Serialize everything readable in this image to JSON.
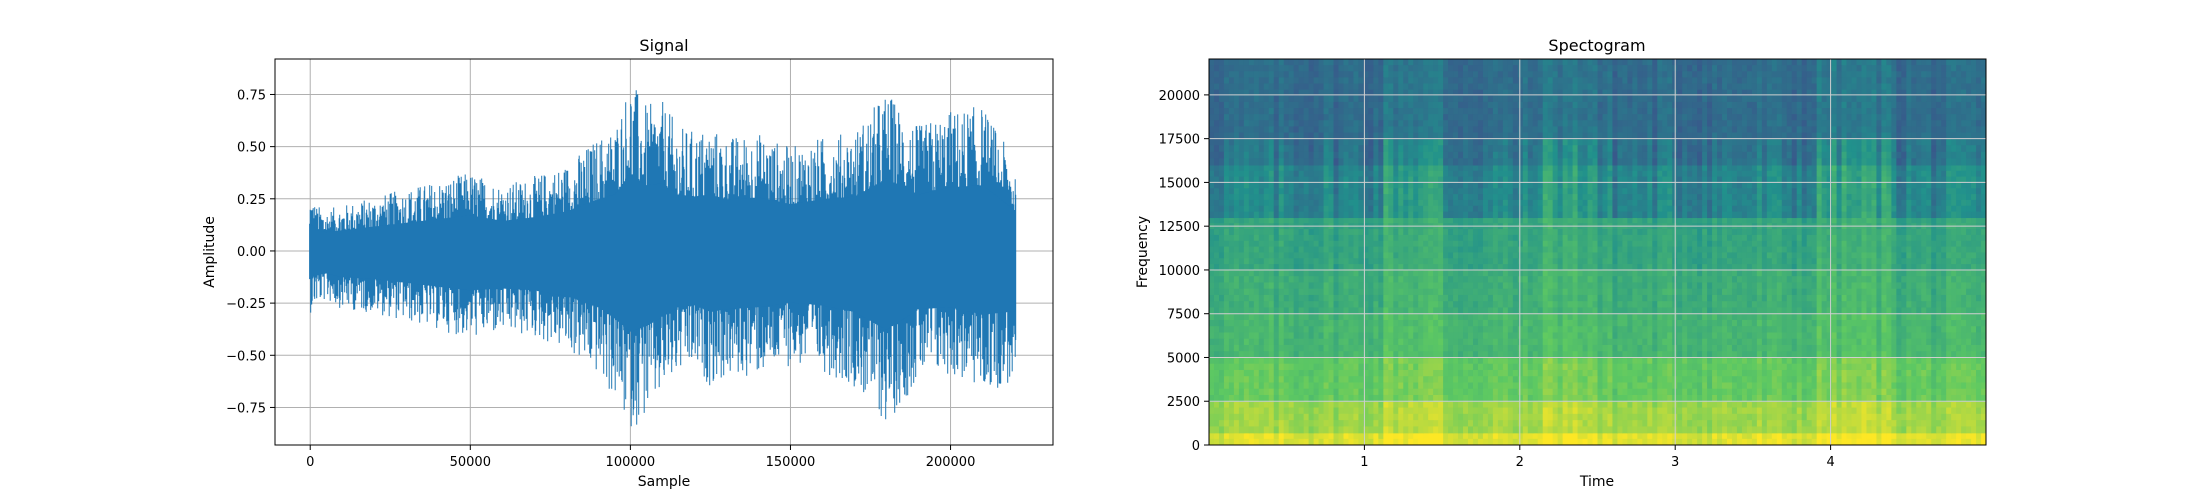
{
  "chart_data": [
    {
      "type": "line",
      "title": "Signal",
      "xlabel": "Sample",
      "ylabel": "Amplitude",
      "xlim": [
        -11000,
        232000
      ],
      "ylim": [
        -0.93,
        0.92
      ],
      "xticks": [
        0,
        50000,
        100000,
        150000,
        200000
      ],
      "xtick_labels": [
        "0",
        "50000",
        "100000",
        "150000",
        "200000"
      ],
      "yticks": [
        -0.75,
        -0.5,
        -0.25,
        0.0,
        0.25,
        0.5,
        0.75
      ],
      "ytick_labels": [
        "−0.75",
        "−0.50",
        "−0.25",
        "0.00",
        "0.25",
        "0.50",
        "0.75"
      ],
      "grid": true,
      "color": "#1f77b4",
      "series": [
        {
          "x": [
            0,
            2000,
            5000,
            10000,
            20000,
            30000,
            40000,
            50000,
            60000,
            70000,
            80000,
            90000,
            95000,
            100000,
            105000,
            110000,
            115000,
            120000,
            125000,
            130000,
            140000,
            150000,
            160000,
            170000,
            180000,
            190000,
            200000,
            210000,
            220500
          ],
          "max": [
            0.29,
            0.22,
            0.2,
            0.22,
            0.26,
            0.3,
            0.34,
            0.38,
            0.32,
            0.36,
            0.42,
            0.55,
            0.6,
            0.83,
            0.7,
            0.72,
            0.6,
            0.58,
            0.6,
            0.55,
            0.57,
            0.5,
            0.55,
            0.58,
            0.77,
            0.6,
            0.68,
            0.7,
            0.42
          ],
          "min": [
            -0.3,
            -0.26,
            -0.24,
            -0.28,
            -0.3,
            -0.34,
            -0.38,
            -0.42,
            -0.4,
            -0.42,
            -0.48,
            -0.6,
            -0.72,
            -0.86,
            -0.8,
            -0.7,
            -0.6,
            -0.58,
            -0.65,
            -0.62,
            -0.6,
            -0.55,
            -0.58,
            -0.65,
            -0.84,
            -0.62,
            -0.6,
            -0.68,
            -0.64
          ]
        }
      ]
    },
    {
      "type": "heatmap",
      "title": "Spectogram",
      "xlabel": "Time",
      "ylabel": "Frequency",
      "xlim": [
        0,
        5
      ],
      "ylim": [
        0,
        22050
      ],
      "xticks": [
        1,
        2,
        3,
        4
      ],
      "xtick_labels": [
        "1",
        "2",
        "3",
        "4"
      ],
      "yticks": [
        0,
        2500,
        5000,
        7500,
        10000,
        12500,
        15000,
        17500,
        20000
      ],
      "ytick_labels": [
        "0",
        "2500",
        "5000",
        "7500",
        "10000",
        "12500",
        "15000",
        "17500",
        "20000"
      ],
      "grid": true,
      "colormap": "viridis",
      "frequency_bands": [
        {
          "from": 0,
          "to": 700,
          "level": 0.95
        },
        {
          "from": 700,
          "to": 2500,
          "level": 0.85
        },
        {
          "from": 2500,
          "to": 5000,
          "level": 0.75
        },
        {
          "from": 5000,
          "to": 7500,
          "level": 0.66
        },
        {
          "from": 7500,
          "to": 10000,
          "level": 0.62
        },
        {
          "from": 10000,
          "to": 13000,
          "level": 0.58
        },
        {
          "from": 13000,
          "to": 16000,
          "level": 0.45
        },
        {
          "from": 16000,
          "to": 17500,
          "level": 0.38
        },
        {
          "from": 17500,
          "to": 22050,
          "level": 0.35
        }
      ]
    }
  ]
}
